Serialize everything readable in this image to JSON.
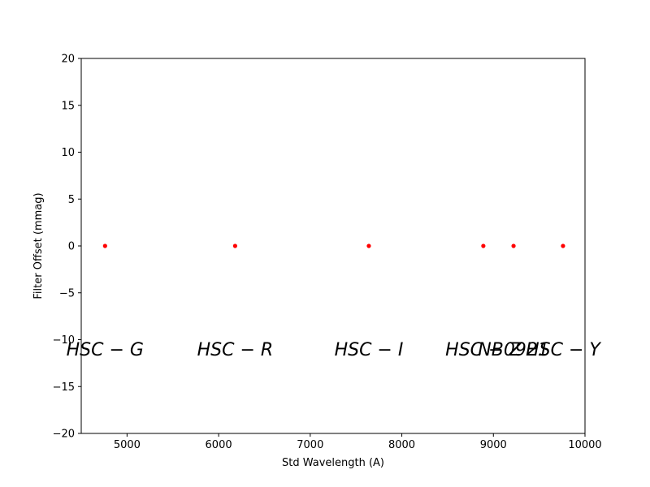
{
  "chart_data": {
    "type": "scatter",
    "xlabel": "Std Wavelength (A)",
    "ylabel": "Filter Offset (mmag)",
    "xlim": [
      4500,
      10000
    ],
    "ylim": [
      -20,
      20
    ],
    "xticks": [
      5000,
      6000,
      7000,
      8000,
      9000,
      10000
    ],
    "yticks": [
      -20,
      -15,
      -10,
      -5,
      0,
      5,
      10,
      15,
      20
    ],
    "ytick_labels": [
      "−20",
      "−15",
      "−10",
      "−5",
      "0",
      "5",
      "10",
      "15",
      "20"
    ],
    "grid": false,
    "marker_color": "#ff0000",
    "points": [
      {
        "x": 4760,
        "y": 0
      },
      {
        "x": 6180,
        "y": 0
      },
      {
        "x": 7640,
        "y": 0
      },
      {
        "x": 8890,
        "y": 0
      },
      {
        "x": 9220,
        "y": 0
      },
      {
        "x": 9760,
        "y": 0
      }
    ],
    "annotations": [
      {
        "text": "HSC − G",
        "x": 4760,
        "y": -11
      },
      {
        "text": "HSC − R",
        "x": 6180,
        "y": -11
      },
      {
        "text": "HSC − I",
        "x": 7640,
        "y": -11
      },
      {
        "text": "HSC − Z",
        "x": 8890,
        "y": -11
      },
      {
        "text": "NB0921",
        "x": 9220,
        "y": -11
      },
      {
        "text": "HSC − Y",
        "x": 9760,
        "y": -11
      }
    ]
  }
}
